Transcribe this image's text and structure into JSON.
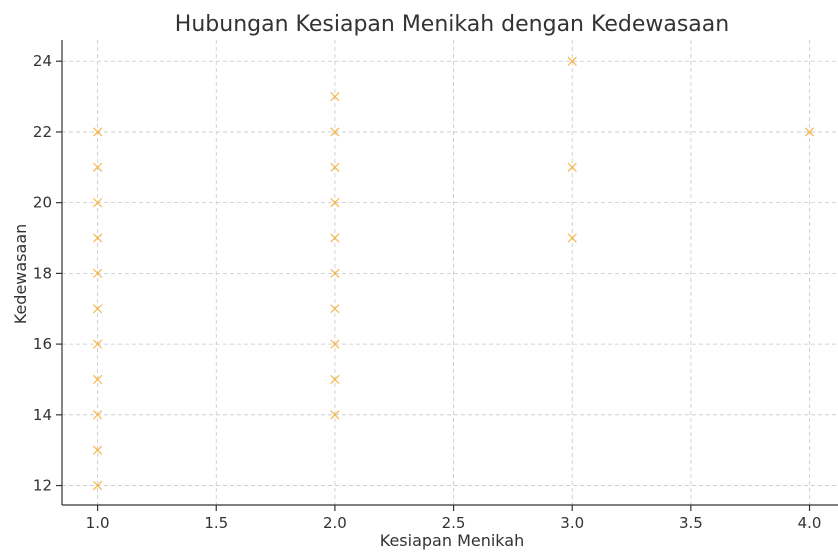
{
  "chart_data": {
    "type": "scatter",
    "title": "Hubungan Kesiapan Menikah dengan Kedewasaan",
    "xlabel": "Kesiapan Menikah",
    "ylabel": "Kedewasaan",
    "xlim": [
      0.85,
      4.12
    ],
    "ylim": [
      11.45,
      24.6
    ],
    "x_ticks": [
      "1.0",
      "1.5",
      "2.0",
      "2.5",
      "3.0",
      "3.5",
      "4.0"
    ],
    "y_ticks": [
      "12",
      "14",
      "16",
      "18",
      "20",
      "22",
      "24"
    ],
    "grid": true,
    "marker": "x",
    "color": "#f5a623",
    "points": [
      {
        "x": 1,
        "y": 12
      },
      {
        "x": 1,
        "y": 13
      },
      {
        "x": 1,
        "y": 14
      },
      {
        "x": 1,
        "y": 15
      },
      {
        "x": 1,
        "y": 16
      },
      {
        "x": 1,
        "y": 17
      },
      {
        "x": 1,
        "y": 18
      },
      {
        "x": 1,
        "y": 19
      },
      {
        "x": 1,
        "y": 20
      },
      {
        "x": 1,
        "y": 21
      },
      {
        "x": 1,
        "y": 22
      },
      {
        "x": 2,
        "y": 14
      },
      {
        "x": 2,
        "y": 15
      },
      {
        "x": 2,
        "y": 16
      },
      {
        "x": 2,
        "y": 17
      },
      {
        "x": 2,
        "y": 18
      },
      {
        "x": 2,
        "y": 19
      },
      {
        "x": 2,
        "y": 20
      },
      {
        "x": 2,
        "y": 21
      },
      {
        "x": 2,
        "y": 22
      },
      {
        "x": 2,
        "y": 23
      },
      {
        "x": 3,
        "y": 19
      },
      {
        "x": 3,
        "y": 21
      },
      {
        "x": 3,
        "y": 24
      },
      {
        "x": 4,
        "y": 22
      }
    ]
  }
}
